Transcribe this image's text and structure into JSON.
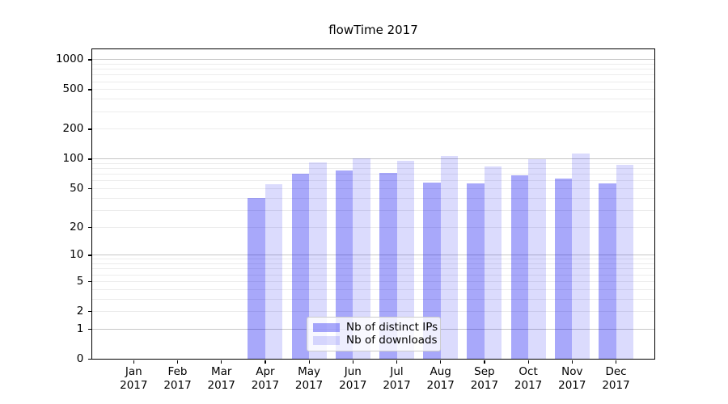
{
  "chart_data": {
    "type": "bar",
    "title": "flowTime 2017",
    "categories": [
      "Jan",
      "Feb",
      "Mar",
      "Apr",
      "May",
      "Jun",
      "Jul",
      "Aug",
      "Sep",
      "Oct",
      "Nov",
      "Dec"
    ],
    "x_year": "2017",
    "series": [
      {
        "name": "Nb of distinct IPs",
        "color": "rgba(0,0,240,0.34)",
        "solid_color": "#a9a9fa",
        "values": [
          0,
          0,
          0,
          40,
          70,
          76,
          72,
          57,
          56,
          68,
          63,
          56
        ]
      },
      {
        "name": "Nb of downloads",
        "color": "rgba(0,0,240,0.14)",
        "solid_color": "#dbdbfc",
        "values": [
          0,
          0,
          0,
          55,
          92,
          101,
          96,
          106,
          83,
          98,
          113,
          87
        ]
      }
    ],
    "yscale": "log1p",
    "yticks": [
      0,
      1,
      2,
      5,
      10,
      20,
      50,
      100,
      200,
      500,
      1000
    ],
    "ylim": [
      0,
      1280
    ],
    "xlabel": "",
    "ylabel": "",
    "grid": {
      "major_lines": [
        1,
        10,
        100,
        1000
      ],
      "major_color": "#c6c6c6",
      "minor_color": "#ececec"
    },
    "legend": {
      "position": "lower-center",
      "border_color": "#cccccc"
    }
  }
}
